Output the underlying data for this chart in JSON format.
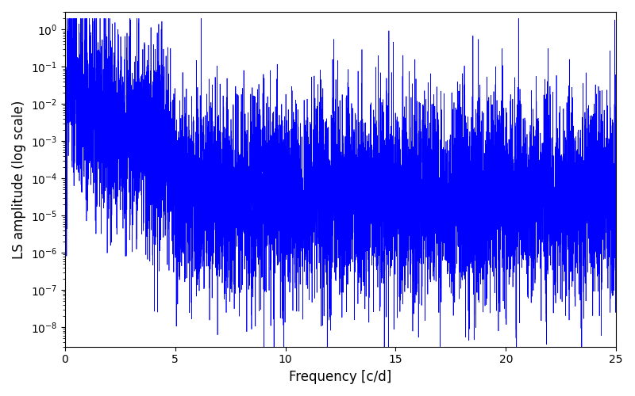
{
  "xlabel": "Frequency [c/d]",
  "ylabel": "LS amplitude (log scale)",
  "xlim": [
    0,
    25
  ],
  "ylim": [
    3e-09,
    3.0
  ],
  "line_color": "#0000ff",
  "line_width": 0.5,
  "figsize": [
    8.0,
    5.0
  ],
  "dpi": 100,
  "seed": 77,
  "n_points": 8000,
  "freq_max": 25.0
}
